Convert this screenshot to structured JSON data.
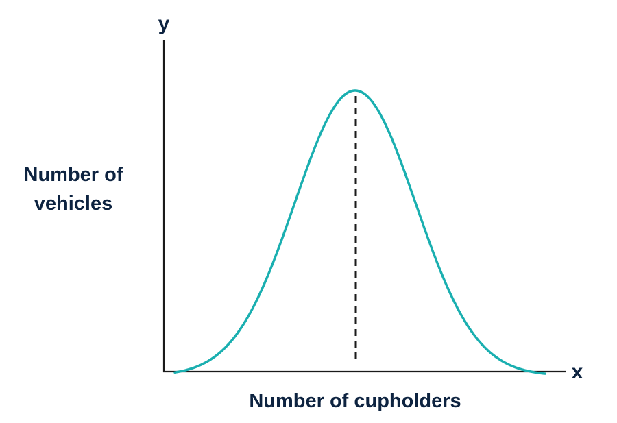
{
  "chart_data": {
    "type": "line",
    "title": "",
    "xlabel": "Number of cupholders",
    "ylabel_lines": [
      "Number of",
      "vehicles"
    ],
    "x_axis_letter": "x",
    "y_axis_letter": "y",
    "series": [
      {
        "curve": "normal-distribution",
        "mean_marker": "dashed-vertical-line"
      }
    ],
    "grid": false,
    "legend": "none",
    "colors": {
      "curve": "#1aafb0",
      "text": "#0d2340",
      "axes": "#1a1a1a",
      "mean_line": "#1a1a1a"
    }
  }
}
